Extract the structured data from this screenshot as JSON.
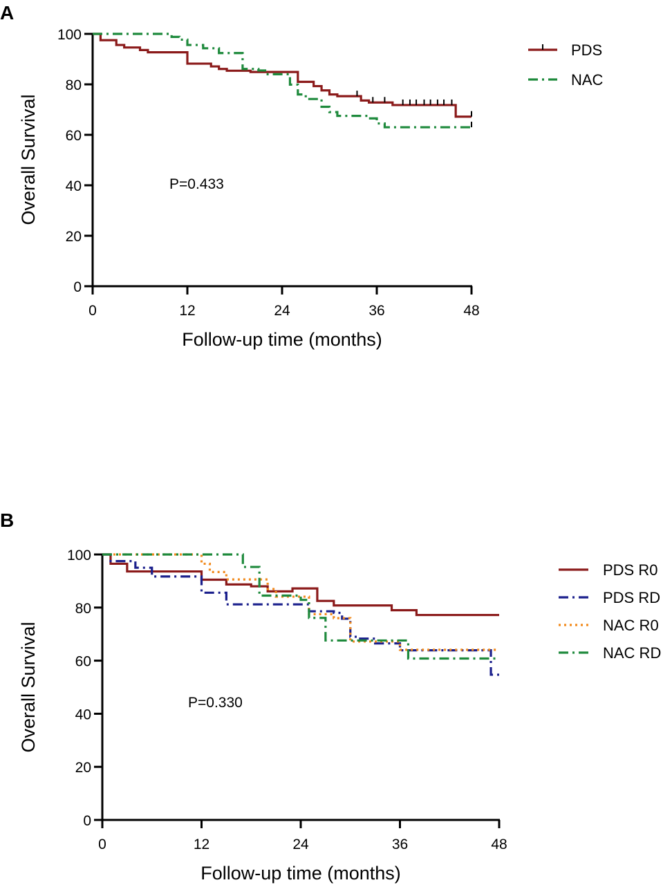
{
  "chart_data": [
    {
      "type": "line",
      "subtype": "kaplan-meier",
      "panel_label": "A",
      "xlabel": "Follow-up time (months)",
      "ylabel": "Overall Survival",
      "xlim": [
        0,
        48
      ],
      "ylim": [
        0,
        100
      ],
      "xticks": [
        "0",
        "12",
        "24",
        "36",
        "48"
      ],
      "yticks": [
        "0",
        "20",
        "40",
        "60",
        "80",
        "100"
      ],
      "annotation": "P=0.433",
      "legend_position": "top-right",
      "series": [
        {
          "name": "PDS",
          "color": "#8b1a1a",
          "dash": "solid",
          "steps": [
            [
              0,
              100
            ],
            [
              1,
              97.5
            ],
            [
              3,
              95.6
            ],
            [
              4,
              94.6
            ],
            [
              6,
              93.6
            ],
            [
              7,
              92.7
            ],
            [
              12,
              88.2
            ],
            [
              15,
              87.1
            ],
            [
              16,
              86.1
            ],
            [
              17,
              85.4
            ],
            [
              20,
              84.9
            ],
            [
              26,
              81.0
            ],
            [
              28,
              79.3
            ],
            [
              29,
              77.6
            ],
            [
              30,
              76.0
            ],
            [
              31,
              75.3
            ],
            [
              34,
              73.6
            ],
            [
              35,
              72.8
            ],
            [
              38,
              71.8
            ],
            [
              46,
              67.2
            ],
            [
              48,
              67.2
            ]
          ],
          "censored": [
            33.5,
            35.5,
            37.0,
            39.3,
            40.2,
            41.0,
            42.0,
            42.8,
            43.7,
            44.5,
            45.5,
            48.0
          ]
        },
        {
          "name": "NAC",
          "color": "#1e8a3c",
          "dash": "dashdot",
          "steps": [
            [
              0,
              100
            ],
            [
              10,
              98.8
            ],
            [
              11,
              97.7
            ],
            [
              12,
              95.6
            ],
            [
              14,
              94.3
            ],
            [
              16,
              92.4
            ],
            [
              19,
              86.1
            ],
            [
              21,
              85.5
            ],
            [
              22,
              84.0
            ],
            [
              25,
              79.9
            ],
            [
              26,
              76.0
            ],
            [
              27,
              74.2
            ],
            [
              29,
              71.1
            ],
            [
              30,
              69.0
            ],
            [
              31,
              67.5
            ],
            [
              35,
              66.5
            ],
            [
              36,
              64.5
            ],
            [
              37,
              63.0
            ],
            [
              48,
              63.0
            ]
          ],
          "censored": [
            48.0
          ]
        }
      ]
    },
    {
      "type": "line",
      "subtype": "kaplan-meier",
      "panel_label": "B",
      "xlabel": "Follow-up time (months)",
      "ylabel": "Overall Survival",
      "xlim": [
        0,
        48
      ],
      "ylim": [
        0,
        100
      ],
      "xticks": [
        "0",
        "12",
        "24",
        "36",
        "48"
      ],
      "yticks": [
        "0",
        "20",
        "40",
        "60",
        "80",
        "100"
      ],
      "annotation": "P=0.330",
      "legend_position": "right",
      "series": [
        {
          "name": "PDS R0",
          "color": "#8b1a1a",
          "dash": "solid",
          "steps": [
            [
              0,
              100
            ],
            [
              1,
              96.5
            ],
            [
              3,
              93.6
            ],
            [
              12,
              90.5
            ],
            [
              15,
              88.7
            ],
            [
              18,
              88.0
            ],
            [
              20,
              86.1
            ],
            [
              23,
              87.2
            ],
            [
              26,
              82.5
            ],
            [
              28,
              80.8
            ],
            [
              33,
              80.8
            ],
            [
              35,
              79.0
            ],
            [
              38,
              77.2
            ],
            [
              48,
              77.2
            ]
          ],
          "censored": []
        },
        {
          "name": "PDS RD",
          "color": "#1a1f8c",
          "dash": "dashdot",
          "steps": [
            [
              0,
              100
            ],
            [
              1,
              97.5
            ],
            [
              4,
              95.0
            ],
            [
              6,
              91.7
            ],
            [
              12,
              85.6
            ],
            [
              15,
              81.2
            ],
            [
              25,
              78.6
            ],
            [
              28,
              78.0
            ],
            [
              29,
              75.8
            ],
            [
              30,
              69.0
            ],
            [
              31,
              68.3
            ],
            [
              33,
              66.5
            ],
            [
              36,
              63.9
            ],
            [
              47,
              54.7
            ],
            [
              48,
              54.7
            ]
          ],
          "censored": []
        },
        {
          "name": "NAC R0",
          "color": "#f28a1c",
          "dash": "dotted",
          "steps": [
            [
              0,
              100
            ],
            [
              12,
              96.5
            ],
            [
              13,
              93.4
            ],
            [
              15,
              90.6
            ],
            [
              20,
              87.0
            ],
            [
              21,
              84.1
            ],
            [
              25,
              77.5
            ],
            [
              28,
              76.0
            ],
            [
              30,
              67.2
            ],
            [
              33,
              67.2
            ],
            [
              36,
              64.1
            ],
            [
              48,
              64.1
            ]
          ],
          "censored": []
        },
        {
          "name": "NAC RD",
          "color": "#1e8a3c",
          "dash": "dashdot",
          "steps": [
            [
              0,
              100
            ],
            [
              17,
              95.3
            ],
            [
              19,
              84.5
            ],
            [
              24,
              82.9
            ],
            [
              25,
              76.1
            ],
            [
              27,
              67.6
            ],
            [
              33,
              67.6
            ],
            [
              37,
              60.8
            ],
            [
              47,
              60.8
            ],
            [
              48,
              60.8
            ]
          ],
          "censored": []
        }
      ]
    }
  ]
}
